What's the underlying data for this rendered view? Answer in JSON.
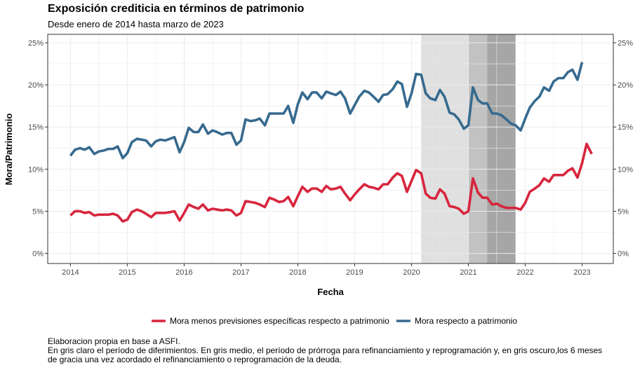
{
  "header": {
    "title": "Exposición crediticia en términos de patrimonio",
    "subtitle": "Desde enero de 2014 hasta marzo de 2023"
  },
  "caption": {
    "line1": "Elaboracion propia en base a ASFI.",
    "line2": "En gris claro el período de diferimientos. En gris medio, el período de prórroga para refinanciamiento y reprogramación y, en gris oscuro,los 6 meses",
    "line3": "de gracia una vez acordado el refinanciamiento o reprogramación de la deuda."
  },
  "colors": {
    "mora_neta": "#d7263d",
    "mora": "#376a8f",
    "shade_light": "#e0e0e0",
    "shade_medium": "#c2c2c2",
    "shade_dark": "#a6a6a6",
    "grid": "#ebebeb",
    "axis_text": "#4d4d4d"
  },
  "chart_data": {
    "type": "line",
    "xlabel": "Fecha",
    "ylabel": "Mora/Patrimonio",
    "xlim": [
      2013.6,
      2023.55
    ],
    "ylim": [
      -1.2,
      26.0
    ],
    "x_ticks": [
      2014,
      2015,
      2016,
      2017,
      2018,
      2019,
      2020,
      2021,
      2022,
      2023
    ],
    "y_ticks": [
      0,
      5,
      10,
      15,
      20,
      25
    ],
    "y_tick_labels": [
      "0%",
      "5%",
      "10%",
      "15%",
      "20%",
      "25%"
    ],
    "secondary_axis": true,
    "grid": true,
    "legend_position": "bottom",
    "shaded_periods": [
      {
        "start": 2020.17,
        "end": 2021.0,
        "shade": "light"
      },
      {
        "start": 2021.0,
        "end": 2021.33,
        "shade": "medium"
      },
      {
        "start": 2021.33,
        "end": 2021.83,
        "shade": "dark"
      }
    ],
    "series": [
      {
        "name": "Mora menos previsiones específicas respecto a patrimonio",
        "color_key": "mora_neta",
        "points": [
          [
            2014.0,
            4.5
          ],
          [
            2014.08,
            5.0
          ],
          [
            2014.17,
            5.0
          ],
          [
            2014.25,
            4.8
          ],
          [
            2014.33,
            4.9
          ],
          [
            2014.42,
            4.5
          ],
          [
            2014.5,
            4.6
          ],
          [
            2014.58,
            4.6
          ],
          [
            2014.67,
            4.6
          ],
          [
            2014.75,
            4.7
          ],
          [
            2014.83,
            4.5
          ],
          [
            2014.92,
            3.8
          ],
          [
            2015.0,
            4.0
          ],
          [
            2015.08,
            4.9
          ],
          [
            2015.17,
            5.2
          ],
          [
            2015.25,
            5.0
          ],
          [
            2015.33,
            4.7
          ],
          [
            2015.42,
            4.3
          ],
          [
            2015.5,
            4.8
          ],
          [
            2015.58,
            4.8
          ],
          [
            2015.67,
            4.8
          ],
          [
            2015.75,
            4.9
          ],
          [
            2015.83,
            5.0
          ],
          [
            2015.92,
            3.9
          ],
          [
            2016.0,
            4.8
          ],
          [
            2016.08,
            5.8
          ],
          [
            2016.17,
            5.5
          ],
          [
            2016.25,
            5.3
          ],
          [
            2016.33,
            5.8
          ],
          [
            2016.42,
            5.1
          ],
          [
            2016.5,
            5.3
          ],
          [
            2016.58,
            5.2
          ],
          [
            2016.67,
            5.1
          ],
          [
            2016.75,
            5.2
          ],
          [
            2016.83,
            5.1
          ],
          [
            2016.92,
            4.5
          ],
          [
            2017.0,
            4.8
          ],
          [
            2017.08,
            6.2
          ],
          [
            2017.17,
            6.1
          ],
          [
            2017.25,
            6.0
          ],
          [
            2017.33,
            5.8
          ],
          [
            2017.42,
            5.5
          ],
          [
            2017.5,
            6.6
          ],
          [
            2017.58,
            6.4
          ],
          [
            2017.67,
            6.1
          ],
          [
            2017.75,
            6.2
          ],
          [
            2017.83,
            6.7
          ],
          [
            2017.92,
            5.6
          ],
          [
            2018.0,
            6.8
          ],
          [
            2018.08,
            7.9
          ],
          [
            2018.17,
            7.3
          ],
          [
            2018.25,
            7.7
          ],
          [
            2018.33,
            7.7
          ],
          [
            2018.42,
            7.3
          ],
          [
            2018.5,
            8.0
          ],
          [
            2018.58,
            7.6
          ],
          [
            2018.67,
            7.7
          ],
          [
            2018.75,
            7.9
          ],
          [
            2018.83,
            7.1
          ],
          [
            2018.92,
            6.3
          ],
          [
            2019.0,
            7.0
          ],
          [
            2019.08,
            7.6
          ],
          [
            2019.17,
            8.2
          ],
          [
            2019.25,
            7.9
          ],
          [
            2019.33,
            7.8
          ],
          [
            2019.42,
            7.6
          ],
          [
            2019.5,
            8.2
          ],
          [
            2019.58,
            8.2
          ],
          [
            2019.67,
            9.0
          ],
          [
            2019.75,
            9.5
          ],
          [
            2019.83,
            9.2
          ],
          [
            2019.92,
            7.3
          ],
          [
            2020.0,
            8.6
          ],
          [
            2020.08,
            9.9
          ],
          [
            2020.17,
            9.5
          ],
          [
            2020.25,
            7.1
          ],
          [
            2020.33,
            6.6
          ],
          [
            2020.42,
            6.5
          ],
          [
            2020.5,
            7.6
          ],
          [
            2020.58,
            7.1
          ],
          [
            2020.67,
            5.6
          ],
          [
            2020.75,
            5.5
          ],
          [
            2020.83,
            5.3
          ],
          [
            2020.92,
            4.7
          ],
          [
            2021.0,
            5.0
          ],
          [
            2021.08,
            8.9
          ],
          [
            2021.17,
            7.2
          ],
          [
            2021.25,
            6.6
          ],
          [
            2021.33,
            6.6
          ],
          [
            2021.42,
            5.8
          ],
          [
            2021.5,
            5.9
          ],
          [
            2021.58,
            5.6
          ],
          [
            2021.67,
            5.4
          ],
          [
            2021.75,
            5.4
          ],
          [
            2021.83,
            5.4
          ],
          [
            2021.92,
            5.2
          ],
          [
            2022.0,
            6.0
          ],
          [
            2022.08,
            7.3
          ],
          [
            2022.17,
            7.7
          ],
          [
            2022.25,
            8.1
          ],
          [
            2022.33,
            8.9
          ],
          [
            2022.42,
            8.5
          ],
          [
            2022.5,
            9.3
          ],
          [
            2022.58,
            9.3
          ],
          [
            2022.67,
            9.3
          ],
          [
            2022.75,
            9.8
          ],
          [
            2022.83,
            10.1
          ],
          [
            2022.92,
            9.0
          ],
          [
            2023.0,
            10.7
          ],
          [
            2023.08,
            13.0
          ],
          [
            2023.17,
            11.8
          ]
        ]
      },
      {
        "name": "Mora respecto a patrimonio",
        "color_key": "mora",
        "points": [
          [
            2014.0,
            11.6
          ],
          [
            2014.08,
            12.3
          ],
          [
            2014.17,
            12.5
          ],
          [
            2014.25,
            12.3
          ],
          [
            2014.33,
            12.6
          ],
          [
            2014.42,
            11.8
          ],
          [
            2014.5,
            12.1
          ],
          [
            2014.58,
            12.2
          ],
          [
            2014.67,
            12.4
          ],
          [
            2014.75,
            12.4
          ],
          [
            2014.83,
            12.7
          ],
          [
            2014.92,
            11.3
          ],
          [
            2015.0,
            11.9
          ],
          [
            2015.08,
            13.2
          ],
          [
            2015.17,
            13.6
          ],
          [
            2015.25,
            13.5
          ],
          [
            2015.33,
            13.4
          ],
          [
            2015.42,
            12.7
          ],
          [
            2015.5,
            13.3
          ],
          [
            2015.58,
            13.5
          ],
          [
            2015.67,
            13.4
          ],
          [
            2015.75,
            13.6
          ],
          [
            2015.83,
            13.8
          ],
          [
            2015.92,
            12.0
          ],
          [
            2016.0,
            13.2
          ],
          [
            2016.08,
            14.9
          ],
          [
            2016.17,
            14.4
          ],
          [
            2016.25,
            14.4
          ],
          [
            2016.33,
            15.3
          ],
          [
            2016.42,
            14.2
          ],
          [
            2016.5,
            14.6
          ],
          [
            2016.58,
            14.4
          ],
          [
            2016.67,
            14.1
          ],
          [
            2016.75,
            14.3
          ],
          [
            2016.83,
            14.3
          ],
          [
            2016.92,
            12.9
          ],
          [
            2017.0,
            13.4
          ],
          [
            2017.08,
            15.9
          ],
          [
            2017.17,
            15.7
          ],
          [
            2017.25,
            15.8
          ],
          [
            2017.33,
            16.0
          ],
          [
            2017.42,
            15.2
          ],
          [
            2017.5,
            16.6
          ],
          [
            2017.58,
            16.6
          ],
          [
            2017.67,
            16.6
          ],
          [
            2017.75,
            16.6
          ],
          [
            2017.83,
            17.5
          ],
          [
            2017.92,
            15.5
          ],
          [
            2018.0,
            17.7
          ],
          [
            2018.08,
            19.1
          ],
          [
            2018.17,
            18.3
          ],
          [
            2018.25,
            19.1
          ],
          [
            2018.33,
            19.1
          ],
          [
            2018.42,
            18.4
          ],
          [
            2018.5,
            19.2
          ],
          [
            2018.58,
            19.0
          ],
          [
            2018.67,
            18.8
          ],
          [
            2018.75,
            19.2
          ],
          [
            2018.83,
            18.4
          ],
          [
            2018.92,
            16.6
          ],
          [
            2019.0,
            17.6
          ],
          [
            2019.08,
            18.6
          ],
          [
            2019.17,
            19.3
          ],
          [
            2019.25,
            19.1
          ],
          [
            2019.33,
            18.6
          ],
          [
            2019.42,
            18.0
          ],
          [
            2019.5,
            18.8
          ],
          [
            2019.58,
            18.9
          ],
          [
            2019.67,
            19.5
          ],
          [
            2019.75,
            20.4
          ],
          [
            2019.83,
            20.1
          ],
          [
            2019.92,
            17.4
          ],
          [
            2020.0,
            19.0
          ],
          [
            2020.08,
            21.3
          ],
          [
            2020.17,
            21.2
          ],
          [
            2020.25,
            19.0
          ],
          [
            2020.33,
            18.4
          ],
          [
            2020.42,
            18.2
          ],
          [
            2020.5,
            19.4
          ],
          [
            2020.58,
            18.6
          ],
          [
            2020.67,
            16.7
          ],
          [
            2020.75,
            16.5
          ],
          [
            2020.83,
            15.9
          ],
          [
            2020.92,
            14.8
          ],
          [
            2021.0,
            15.2
          ],
          [
            2021.08,
            19.7
          ],
          [
            2021.17,
            18.2
          ],
          [
            2021.25,
            17.8
          ],
          [
            2021.33,
            17.8
          ],
          [
            2021.42,
            16.6
          ],
          [
            2021.5,
            16.6
          ],
          [
            2021.58,
            16.4
          ],
          [
            2021.67,
            15.9
          ],
          [
            2021.75,
            15.4
          ],
          [
            2021.83,
            15.2
          ],
          [
            2021.92,
            14.6
          ],
          [
            2022.0,
            16.0
          ],
          [
            2022.08,
            17.3
          ],
          [
            2022.17,
            18.1
          ],
          [
            2022.25,
            18.6
          ],
          [
            2022.33,
            19.7
          ],
          [
            2022.42,
            19.3
          ],
          [
            2022.5,
            20.4
          ],
          [
            2022.58,
            20.8
          ],
          [
            2022.67,
            20.8
          ],
          [
            2022.75,
            21.5
          ],
          [
            2022.83,
            21.8
          ],
          [
            2022.92,
            20.6
          ],
          [
            2023.0,
            22.7
          ]
        ]
      }
    ]
  }
}
